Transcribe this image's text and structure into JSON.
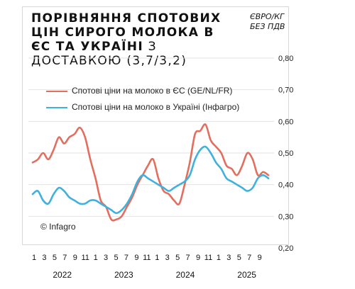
{
  "header": {
    "title_bold": "ПОРІВНЯННЯ СПОТОВИХ ЦІН СИРОГО МОЛОКА В ЄС ТА УКРАЇНІ",
    "title_rest": " З ДОСТАВКОЮ (3,7/3,2)",
    "unit_line1": "ЄВРО/КГ",
    "unit_line2": "БЕЗ ПДВ"
  },
  "copyright": "© Infagro",
  "colors": {
    "eu": "#e46e5e",
    "ua": "#3fb1dc",
    "grid": "#e2e2e2"
  },
  "chart_data": {
    "type": "line",
    "title": "ПОРІВНЯННЯ СПОТОВИХ ЦІН СИРОГО МОЛОКА В ЄС ТА УКРАЇНІ З ДОСТАВКОЮ (3,7/3,2)",
    "ylabel": "ЄВРО/КГ БЕЗ ПДВ",
    "ylim": [
      0.2,
      0.8
    ],
    "yticks": [
      "0,20",
      "0,30",
      "0,40",
      "0,50",
      "0,60",
      "0,70",
      "0,80"
    ],
    "xticks": [
      "1",
      "3",
      "5",
      "7",
      "9",
      "11",
      "1",
      "3",
      "5",
      "7",
      "9",
      "11",
      "1",
      "3",
      "5",
      "7",
      "9",
      "11",
      "1",
      "3",
      "5",
      "7",
      "9"
    ],
    "years": [
      "2022",
      "2023",
      "2024",
      "2025"
    ],
    "grid": true,
    "legend_position": "top-left",
    "x": [
      "2022-01",
      "2022-02",
      "2022-03",
      "2022-04",
      "2022-05",
      "2022-06",
      "2022-07",
      "2022-08",
      "2022-09",
      "2022-10",
      "2022-11",
      "2022-12",
      "2023-01",
      "2023-02",
      "2023-03",
      "2023-04",
      "2023-05",
      "2023-06",
      "2023-07",
      "2023-08",
      "2023-09",
      "2023-10",
      "2023-11",
      "2023-12",
      "2024-01",
      "2024-02",
      "2024-03",
      "2024-04",
      "2024-05",
      "2024-06",
      "2024-07",
      "2024-08",
      "2024-09",
      "2024-10",
      "2024-11",
      "2024-12",
      "2025-01",
      "2025-02",
      "2025-03",
      "2025-04",
      "2025-05",
      "2025-06",
      "2025-07",
      "2025-08",
      "2025-09",
      "2025-10"
    ],
    "series": [
      {
        "name": "Спотові ціни на молоко в ЄС (GE/NL/FR)",
        "values": [
          0.47,
          0.48,
          0.5,
          0.48,
          0.51,
          0.55,
          0.53,
          0.55,
          0.56,
          0.58,
          0.55,
          0.48,
          0.42,
          0.35,
          0.33,
          0.29,
          0.29,
          0.3,
          0.33,
          0.36,
          0.4,
          0.43,
          0.46,
          0.48,
          0.42,
          0.38,
          0.37,
          0.35,
          0.34,
          0.4,
          0.47,
          0.56,
          0.57,
          0.59,
          0.54,
          0.52,
          0.5,
          0.46,
          0.45,
          0.43,
          0.46,
          0.5,
          0.48,
          0.43,
          0.44,
          0.43
        ]
      },
      {
        "name": "Спотові ціни на молоко в Україні (Інфагро)",
        "values": [
          0.37,
          0.38,
          0.35,
          0.34,
          0.37,
          0.39,
          0.38,
          0.36,
          0.35,
          0.34,
          0.34,
          0.35,
          0.35,
          0.34,
          0.33,
          0.32,
          0.31,
          0.32,
          0.34,
          0.37,
          0.41,
          0.43,
          0.42,
          0.41,
          0.4,
          0.39,
          0.38,
          0.39,
          0.4,
          0.41,
          0.43,
          0.48,
          0.51,
          0.52,
          0.5,
          0.47,
          0.45,
          0.42,
          0.41,
          0.4,
          0.39,
          0.38,
          0.39,
          0.42,
          0.43,
          0.42
        ]
      }
    ]
  }
}
